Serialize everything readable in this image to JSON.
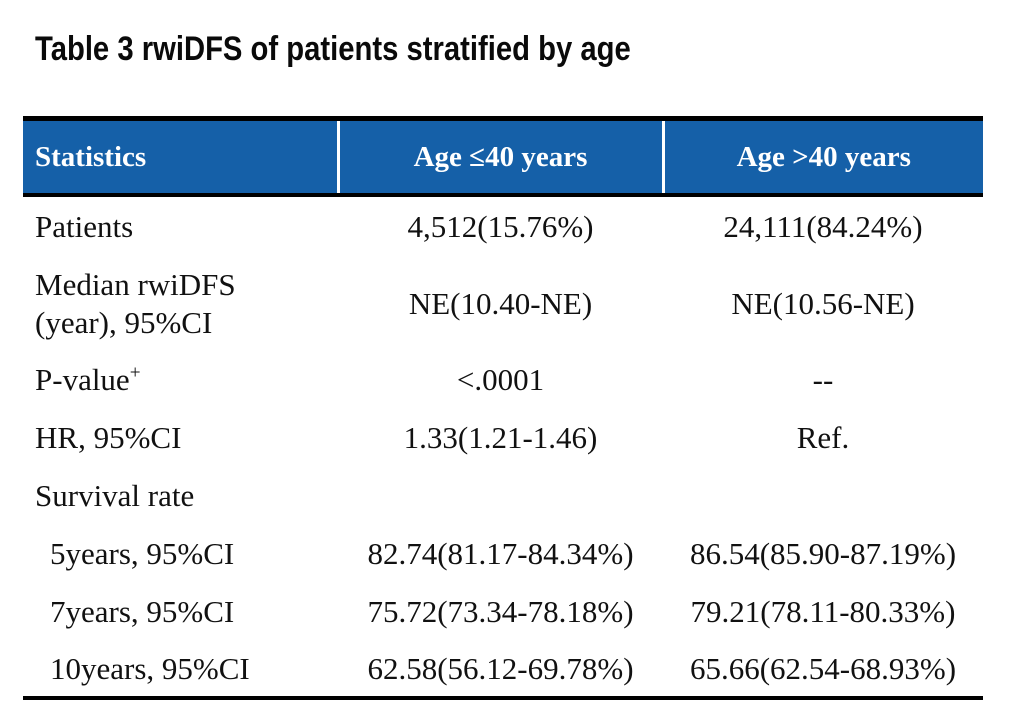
{
  "page": {
    "title": "Table 3 rwiDFS of patients stratified by age"
  },
  "colors": {
    "header_bg": "#1560a8",
    "header_text": "#ffffff",
    "body_text": "#111111",
    "border": "#000000"
  },
  "table": {
    "columns": [
      {
        "label": "Statistics"
      },
      {
        "label": "Age ≤40 years"
      },
      {
        "label": "Age >40 years"
      }
    ],
    "rows": [
      {
        "label": "Patients",
        "age_le40": "4,512(15.76%)",
        "age_gt40": "24,111(84.24%)"
      },
      {
        "label": "Median rwiDFS\n(year), 95%CI",
        "age_le40": "NE(10.40-NE)",
        "age_gt40": "NE(10.56-NE)"
      },
      {
        "label": "P-value",
        "label_sup": "+",
        "age_le40": "<.0001",
        "age_gt40": "--"
      },
      {
        "label": "HR, 95%CI",
        "age_le40": "1.33(1.21-1.46)",
        "age_gt40": "Ref."
      },
      {
        "label": "Survival rate",
        "age_le40": "",
        "age_gt40": ""
      },
      {
        "label": "5years, 95%CI",
        "age_le40": "82.74(81.17-84.34%)",
        "age_gt40": "86.54(85.90-87.19%)",
        "indent": true
      },
      {
        "label": "7years, 95%CI",
        "age_le40": "75.72(73.34-78.18%)",
        "age_gt40": "79.21(78.11-80.33%)",
        "indent": true
      },
      {
        "label": "10years, 95%CI",
        "age_le40": "62.58(56.12-69.78%)",
        "age_gt40": "65.66(62.54-68.93%)",
        "indent": true
      }
    ]
  }
}
